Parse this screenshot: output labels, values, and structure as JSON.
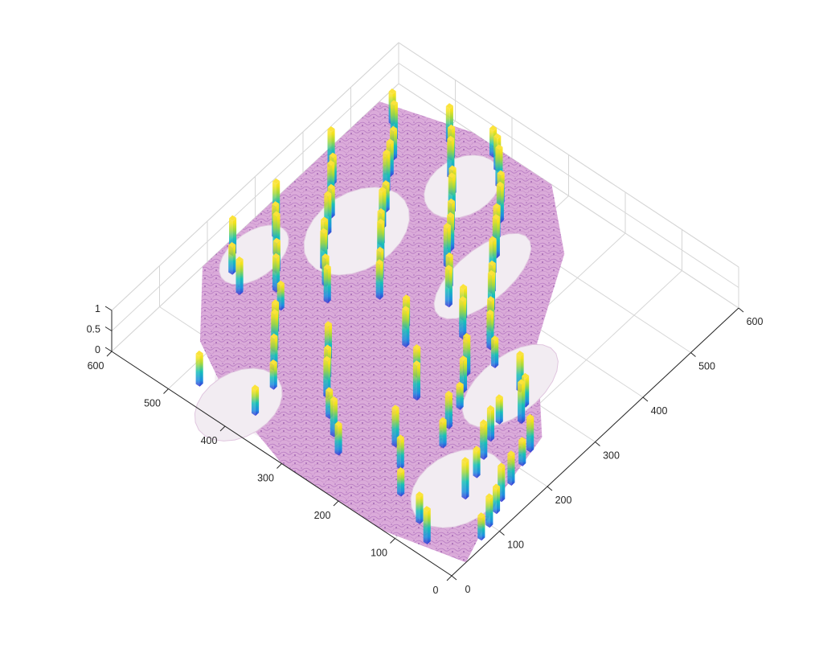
{
  "chart_data": {
    "type": "surface",
    "title": "",
    "xlabel": "",
    "ylabel": "",
    "zlabel": "",
    "x_ticks": [
      "0",
      "100",
      "200",
      "300",
      "400",
      "500",
      "600"
    ],
    "y_ticks": [
      "0",
      "100",
      "200",
      "300",
      "400",
      "500",
      "600"
    ],
    "z_ticks": [
      "0",
      "0.5",
      "1"
    ],
    "xlim": [
      0,
      600
    ],
    "ylim": [
      0,
      600
    ],
    "zlim": [
      0,
      1
    ],
    "grid": true,
    "base_texture": "histology-tissue-pink",
    "colormap": [
      "#3c32d4",
      "#1e8fe0",
      "#17c0b8",
      "#a8d93a",
      "#f4e21c",
      "#fbe33a"
    ],
    "view": "3-D oblique, corner (0,0) nearest the viewer",
    "bars": [
      {
        "x": 72,
        "y": 8,
        "h": 0.55
      },
      {
        "x": 96,
        "y": 14,
        "h": 0.7
      },
      {
        "x": 120,
        "y": 22,
        "h": 0.6
      },
      {
        "x": 140,
        "y": 30,
        "h": 0.82
      },
      {
        "x": 170,
        "y": 38,
        "h": 0.72
      },
      {
        "x": 205,
        "y": 48,
        "h": 0.58
      },
      {
        "x": 230,
        "y": 55,
        "h": 0.8
      },
      {
        "x": 112,
        "y": 70,
        "h": 0.9
      },
      {
        "x": 150,
        "y": 82,
        "h": 0.65
      },
      {
        "x": 180,
        "y": 95,
        "h": 0.85
      },
      {
        "x": 210,
        "y": 108,
        "h": 0.75
      },
      {
        "x": 240,
        "y": 118,
        "h": 0.6
      },
      {
        "x": 260,
        "y": 96,
        "h": 0.95
      },
      {
        "x": 285,
        "y": 110,
        "h": 0.7
      },
      {
        "x": 300,
        "y": 132,
        "h": 0.88
      },
      {
        "x": 160,
        "y": 150,
        "h": 0.62
      },
      {
        "x": 190,
        "y": 165,
        "h": 0.8
      },
      {
        "x": 225,
        "y": 175,
        "h": 0.55
      },
      {
        "x": 250,
        "y": 190,
        "h": 0.78
      },
      {
        "x": 275,
        "y": 205,
        "h": 0.92
      },
      {
        "x": 310,
        "y": 185,
        "h": 0.66
      },
      {
        "x": 330,
        "y": 210,
        "h": 0.85
      },
      {
        "x": 355,
        "y": 230,
        "h": 0.72
      },
      {
        "x": 380,
        "y": 250,
        "h": 0.9
      },
      {
        "x": 405,
        "y": 270,
        "h": 0.68
      },
      {
        "x": 430,
        "y": 290,
        "h": 0.82
      },
      {
        "x": 455,
        "y": 305,
        "h": 0.95
      },
      {
        "x": 480,
        "y": 325,
        "h": 0.76
      },
      {
        "x": 505,
        "y": 340,
        "h": 0.88
      },
      {
        "x": 530,
        "y": 360,
        "h": 0.7
      },
      {
        "x": 550,
        "y": 380,
        "h": 0.93
      },
      {
        "x": 570,
        "y": 400,
        "h": 0.8
      },
      {
        "x": 585,
        "y": 420,
        "h": 0.65
      },
      {
        "x": 350,
        "y": 300,
        "h": 0.9
      },
      {
        "x": 375,
        "y": 320,
        "h": 0.75
      },
      {
        "x": 400,
        "y": 345,
        "h": 0.97
      },
      {
        "x": 425,
        "y": 360,
        "h": 0.82
      },
      {
        "x": 450,
        "y": 380,
        "h": 0.7
      },
      {
        "x": 475,
        "y": 400,
        "h": 0.88
      },
      {
        "x": 500,
        "y": 420,
        "h": 0.6
      },
      {
        "x": 520,
        "y": 440,
        "h": 0.92
      },
      {
        "x": 545,
        "y": 460,
        "h": 0.74
      },
      {
        "x": 565,
        "y": 480,
        "h": 0.86
      },
      {
        "x": 300,
        "y": 380,
        "h": 0.85
      },
      {
        "x": 325,
        "y": 400,
        "h": 0.7
      },
      {
        "x": 350,
        "y": 420,
        "h": 0.93
      },
      {
        "x": 372,
        "y": 438,
        "h": 0.78
      },
      {
        "x": 395,
        "y": 455,
        "h": 0.9
      },
      {
        "x": 420,
        "y": 470,
        "h": 0.65
      },
      {
        "x": 445,
        "y": 490,
        "h": 0.95
      },
      {
        "x": 470,
        "y": 505,
        "h": 0.8
      },
      {
        "x": 495,
        "y": 520,
        "h": 0.7
      },
      {
        "x": 520,
        "y": 540,
        "h": 0.88
      },
      {
        "x": 540,
        "y": 560,
        "h": 0.76
      },
      {
        "x": 250,
        "y": 430,
        "h": 0.82
      },
      {
        "x": 270,
        "y": 450,
        "h": 0.68
      },
      {
        "x": 290,
        "y": 470,
        "h": 0.9
      },
      {
        "x": 315,
        "y": 490,
        "h": 0.72
      },
      {
        "x": 340,
        "y": 505,
        "h": 0.94
      },
      {
        "x": 365,
        "y": 520,
        "h": 0.7
      },
      {
        "x": 388,
        "y": 540,
        "h": 0.85
      },
      {
        "x": 410,
        "y": 555,
        "h": 0.66
      },
      {
        "x": 430,
        "y": 575,
        "h": 0.9
      },
      {
        "x": 200,
        "y": 470,
        "h": 0.6
      },
      {
        "x": 220,
        "y": 495,
        "h": 0.82
      },
      {
        "x": 245,
        "y": 515,
        "h": 0.74
      },
      {
        "x": 268,
        "y": 535,
        "h": 0.96
      },
      {
        "x": 290,
        "y": 555,
        "h": 0.78
      },
      {
        "x": 315,
        "y": 575,
        "h": 0.88
      },
      {
        "x": 60,
        "y": 250,
        "h": 0.7
      },
      {
        "x": 80,
        "y": 275,
        "h": 0.86
      },
      {
        "x": 100,
        "y": 300,
        "h": 0.64
      },
      {
        "x": 125,
        "y": 325,
        "h": 0.9
      },
      {
        "x": 150,
        "y": 345,
        "h": 0.72
      },
      {
        "x": 175,
        "y": 365,
        "h": 0.84
      },
      {
        "x": 90,
        "y": 390,
        "h": 0.6
      },
      {
        "x": 115,
        "y": 410,
        "h": 0.78
      },
      {
        "x": 140,
        "y": 430,
        "h": 0.92
      },
      {
        "x": 165,
        "y": 450,
        "h": 0.7
      },
      {
        "x": 185,
        "y": 530,
        "h": 0.8
      },
      {
        "x": 205,
        "y": 560,
        "h": 0.66
      },
      {
        "x": 230,
        "y": 580,
        "h": 0.86
      },
      {
        "x": 40,
        "y": 380,
        "h": 0.62
      },
      {
        "x": 30,
        "y": 470,
        "h": 0.74
      },
      {
        "x": 260,
        "y": 300,
        "h": 0.88
      },
      {
        "x": 285,
        "y": 320,
        "h": 0.7
      },
      {
        "x": 320,
        "y": 250,
        "h": 0.92
      },
      {
        "x": 345,
        "y": 270,
        "h": 0.76
      },
      {
        "x": 200,
        "y": 230,
        "h": 0.84
      },
      {
        "x": 230,
        "y": 255,
        "h": 0.68
      },
      {
        "x": 120,
        "y": 200,
        "h": 0.9
      },
      {
        "x": 95,
        "y": 170,
        "h": 0.72
      },
      {
        "x": 60,
        "y": 140,
        "h": 0.58
      },
      {
        "x": 40,
        "y": 90,
        "h": 0.66
      },
      {
        "x": 20,
        "y": 60,
        "h": 0.8
      }
    ]
  }
}
